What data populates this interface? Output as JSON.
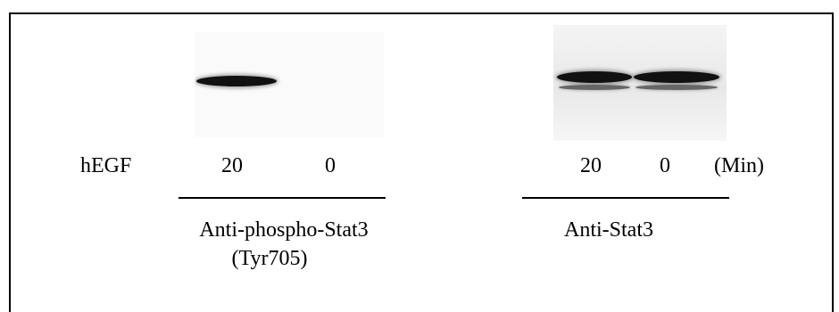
{
  "treatment_label": "hEGF",
  "time_unit": "(Min)",
  "panels": [
    {
      "antibody_line1": "Anti-phospho-Stat3",
      "antibody_line2": "(Tyr705)",
      "lanes": [
        {
          "time": "20",
          "band_level": 1.0
        },
        {
          "time": "0",
          "band_level": 0.0
        }
      ]
    },
    {
      "antibody_line1": "Anti-Stat3",
      "lanes": [
        {
          "time": "20",
          "band_level": 1.0
        },
        {
          "time": "0",
          "band_level": 1.0
        }
      ]
    }
  ],
  "colors": {
    "band": "#111111",
    "blot_background": "#f2f2f2",
    "frame": "#000000"
  }
}
